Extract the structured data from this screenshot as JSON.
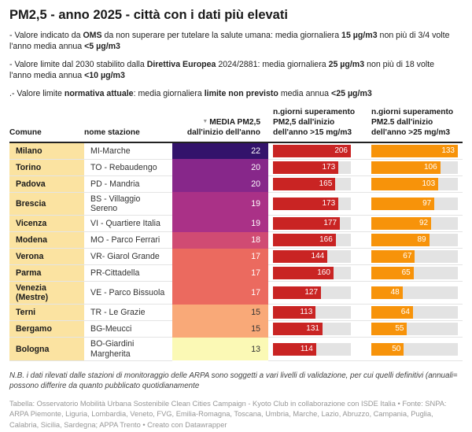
{
  "title": "PM2,5 - anno 2025 - città con i dati più elevati",
  "notes": [
    {
      "segments": [
        {
          "t": "- Valore indicato da ",
          "b": false
        },
        {
          "t": "OMS",
          "b": true
        },
        {
          "t": " da non superare per tutelare la salute umana: media giornaliera ",
          "b": false
        },
        {
          "t": "15 µg/m3",
          "b": true
        },
        {
          "t": " non più di 3/4 volte l'anno media annua ",
          "b": false
        },
        {
          "t": "<5 µg/m3",
          "b": true
        }
      ]
    },
    {
      "segments": [
        {
          "t": "- Valore limite dal 2030 stabilito dalla ",
          "b": false
        },
        {
          "t": "Direttiva Europea",
          "b": true
        },
        {
          "t": " 2024/2881: media giornaliera ",
          "b": false
        },
        {
          "t": "25 µg/m3",
          "b": true
        },
        {
          "t": " non più di 18 volte l'anno media annua ",
          "b": false
        },
        {
          "t": "<10 µg/m3",
          "b": true
        }
      ]
    },
    {
      "segments": [
        {
          "t": ".- Valore limite ",
          "b": false
        },
        {
          "t": "normativa attuale",
          "b": true
        },
        {
          "t": ": media giornaliera ",
          "b": false
        },
        {
          "t": "limite non previsto",
          "b": true
        },
        {
          "t": " media annua ",
          "b": false
        },
        {
          "t": "<25 µg/m3",
          "b": true
        }
      ]
    }
  ],
  "table_ui": {
    "sort_indicator": "▼"
  },
  "chart_data": {
    "type": "table",
    "title": "PM2,5 - anno 2025 - città con i dati più elevati",
    "columns": {
      "comune": "Comune",
      "stazione": "nome stazione",
      "media": "MEDIA PM2,5 dall'inizio dell'anno",
      "giorni15": "n.giorni superamento PM2,5 dall'inizio dell'anno >15 mg/m3",
      "giorni25": "n.giorni superamento PM2.5 dall'inizio dell'anno >25 mg/m3"
    },
    "max": {
      "giorni_sup_15": 206,
      "giorni_sup_25": 133
    },
    "rows": [
      {
        "comune": "Milano",
        "stazione": "MI-Marche",
        "media": 22,
        "media_color": "#33136b",
        "media_dark_text": false,
        "giorni_sup_15": 206,
        "giorni_sup_25": 133
      },
      {
        "comune": "Torino",
        "stazione": "TO - Rebaudengo",
        "media": 20,
        "media_color": "#87278a",
        "media_dark_text": false,
        "giorni_sup_15": 173,
        "giorni_sup_25": 106
      },
      {
        "comune": "Padova",
        "stazione": "PD - Mandria",
        "media": 20,
        "media_color": "#87278a",
        "media_dark_text": false,
        "giorni_sup_15": 165,
        "giorni_sup_25": 103
      },
      {
        "comune": "Brescia",
        "stazione": "BS - Villaggio Sereno",
        "media": 19,
        "media_color": "#aa3187",
        "media_dark_text": false,
        "giorni_sup_15": 173,
        "giorni_sup_25": 97
      },
      {
        "comune": "Vicenza",
        "stazione": "VI - Quartiere Italia",
        "media": 19,
        "media_color": "#aa3187",
        "media_dark_text": false,
        "giorni_sup_15": 177,
        "giorni_sup_25": 92
      },
      {
        "comune": "Modena",
        "stazione": "MO - Parco Ferrari",
        "media": 18,
        "media_color": "#d04b73",
        "media_dark_text": false,
        "giorni_sup_15": 166,
        "giorni_sup_25": 89
      },
      {
        "comune": "Verona",
        "stazione": "VR- Giarol Grande",
        "media": 17,
        "media_color": "#eb6a5f",
        "media_dark_text": false,
        "giorni_sup_15": 144,
        "giorni_sup_25": 67
      },
      {
        "comune": "Parma",
        "stazione": "PR-Cittadella",
        "media": 17,
        "media_color": "#eb6a5f",
        "media_dark_text": false,
        "giorni_sup_15": 160,
        "giorni_sup_25": 65
      },
      {
        "comune": "Venezia (Mestre)",
        "stazione": "VE - Parco Bissuola",
        "media": 17,
        "media_color": "#eb6a5f",
        "media_dark_text": false,
        "giorni_sup_15": 127,
        "giorni_sup_25": 48
      },
      {
        "comune": "Terni",
        "stazione": "TR - Le Grazie",
        "media": 15,
        "media_color": "#f9a978",
        "media_dark_text": true,
        "giorni_sup_15": 113,
        "giorni_sup_25": 64
      },
      {
        "comune": "Bergamo",
        "stazione": "BG-Meucci",
        "media": 15,
        "media_color": "#f9a978",
        "media_dark_text": true,
        "giorni_sup_15": 131,
        "giorni_sup_25": 55
      },
      {
        "comune": "Bologna",
        "stazione": "BO-Giardini Margherita",
        "media": 13,
        "media_color": "#fbf9b5",
        "media_dark_text": true,
        "giorni_sup_15": 114,
        "giorni_sup_25": 50
      }
    ]
  },
  "footnote": "N.B. i dati rilevati dalle stazioni di monitoraggio delle ARPA sono soggetti a vari livelli di validazione, per cui quelli definitivi (annuali= possono differire da quanto pubblicato quotidianamente",
  "credits": "Tabella: Osservatorio Mobilità Urbana Sostenibile Clean Cities Campaign - Kyoto Club in collaborazione con ISDE Italia • Fonte: SNPA: ARPA Piemonte, Liguria, Lombardia, Veneto, FVG, Emilia-Romagna, Toscana, Umbria, Marche, Lazio, Abruzzo, Campania, Puglia, Calabria, Sicilia, Sardegna; APPA Trento • Creato con Datawrapper",
  "colors": {
    "red_bar": "#c92423",
    "orange_bar": "#f7930a",
    "bar_track": "#e3e3e3",
    "comune_bg": "#fbe3a1",
    "row_border": "#e4e4e4",
    "header_border": "#222222"
  }
}
